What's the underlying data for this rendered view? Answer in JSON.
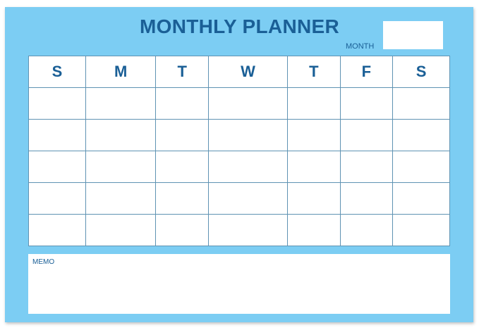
{
  "title": "MONTHLY PLANNER",
  "month_label": "MONTH",
  "days": [
    "S",
    "M",
    "T",
    "W",
    "T",
    "F",
    "S"
  ],
  "rows": 5,
  "memo_label": "MEMO",
  "colors": {
    "background": "#7ccdf3",
    "text": "#1a5f96",
    "grid": "#5f93b3"
  }
}
